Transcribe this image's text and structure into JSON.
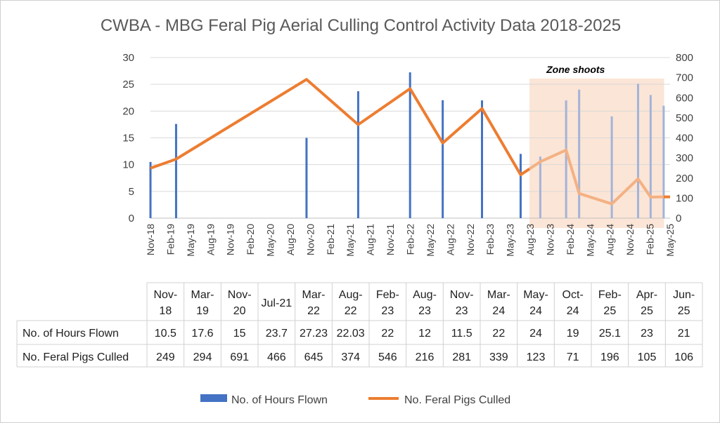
{
  "chart_data": {
    "type": "bar",
    "title": "CWBA - MBG Feral Pig Aerial Culling Control Activity Data 2018-2025",
    "x_ticks": [
      "Nov-18",
      "Feb-19",
      "May-19",
      "Aug-19",
      "Nov-19",
      "Feb-20",
      "May-20",
      "Aug-20",
      "Nov-20",
      "Feb-21",
      "May-21",
      "Aug-21",
      "Nov-21",
      "Feb-22",
      "May-22",
      "Aug-22",
      "Nov-22",
      "Feb-23",
      "May-23",
      "Aug-23",
      "Nov-23",
      "Feb-24",
      "May-24",
      "Aug-24",
      "Nov-24",
      "Feb-25",
      "May-25"
    ],
    "y_left": {
      "ylim": [
        0,
        30
      ],
      "ticks": [
        0,
        5,
        10,
        15,
        20,
        25,
        30
      ]
    },
    "y_right": {
      "ylim": [
        0,
        800
      ],
      "ticks": [
        0,
        100,
        200,
        300,
        400,
        500,
        600,
        700,
        800
      ]
    },
    "categories": [
      [
        "Nov-",
        "18"
      ],
      [
        "Mar-",
        "19"
      ],
      [
        "Nov-",
        "20"
      ],
      [
        "Jul-21",
        ""
      ],
      [
        "Mar-",
        "22"
      ],
      [
        "Aug-",
        "22"
      ],
      [
        "Feb-",
        "23"
      ],
      [
        "Aug-",
        "23"
      ],
      [
        "Nov-",
        "23"
      ],
      [
        "Mar-",
        "24"
      ],
      [
        "May-",
        "24"
      ],
      [
        "Oct-",
        "24"
      ],
      [
        "Feb-",
        "25"
      ],
      [
        "Apr-",
        "25"
      ],
      [
        "Jun-",
        "25"
      ]
    ],
    "dates": [
      "2018-11",
      "2019-03",
      "2020-11",
      "2021-07",
      "2022-03",
      "2022-08",
      "2023-02",
      "2023-08",
      "2023-11",
      "2024-03",
      "2024-05",
      "2024-10",
      "2025-02",
      "2025-04",
      "2025-06"
    ],
    "series": [
      {
        "name": "No. of Hours Flown",
        "type": "bar",
        "axis": "left",
        "color": "#4472C4",
        "values": [
          10.5,
          17.6,
          15,
          23.7,
          27.23,
          22.03,
          22,
          12,
          11.5,
          22,
          24,
          19,
          25.1,
          23,
          21
        ]
      },
      {
        "name": "No. Feral Pigs Culled",
        "type": "line",
        "axis": "right",
        "color": "#ED7D31",
        "values": [
          249,
          294,
          691,
          466,
          645,
          374,
          546,
          216,
          281,
          339,
          123,
          71,
          196,
          105,
          106
        ]
      }
    ],
    "annotation": {
      "text": "Zone shoots",
      "start": "2023-10",
      "end": "2025-05",
      "color": "#FBE5D6"
    },
    "legend_position": "bottom"
  }
}
